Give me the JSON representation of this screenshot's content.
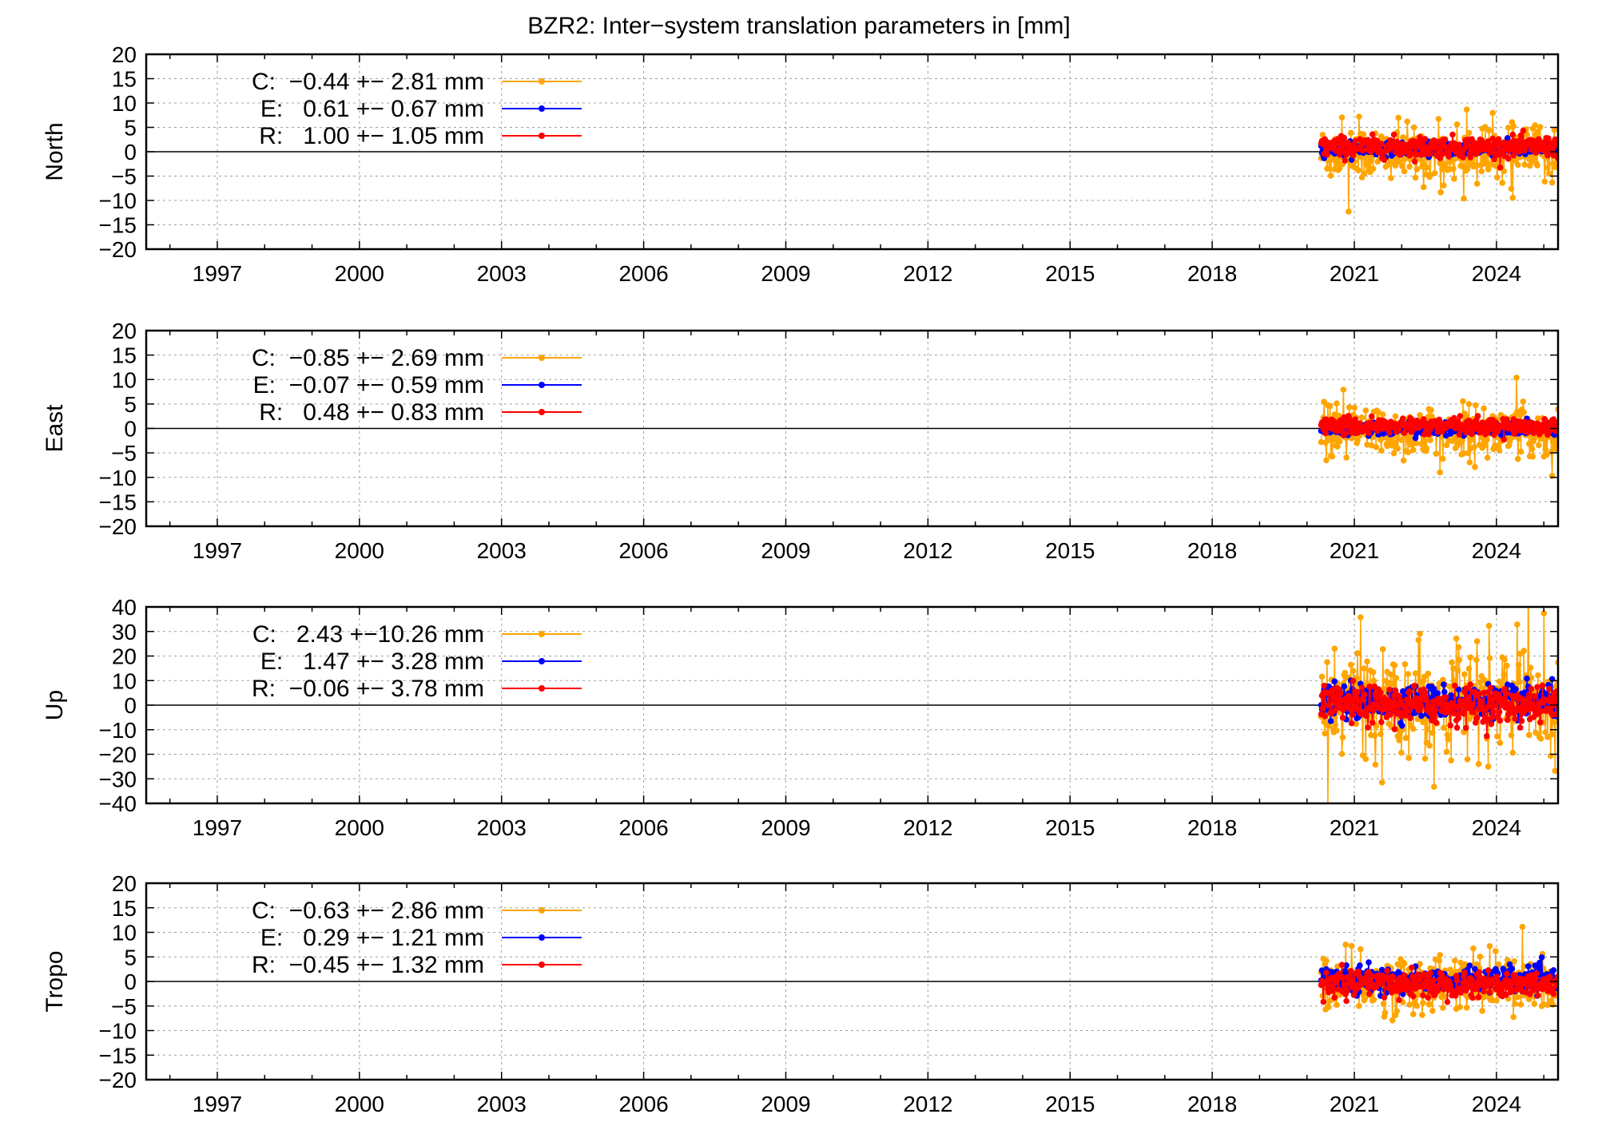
{
  "title": "BZR2: Inter−system translation parameters in [mm]",
  "colors": {
    "C": "#ffa500",
    "E": "#0000ff",
    "R": "#ff0000",
    "axis": "#000000",
    "grid": "#a0a0a0"
  },
  "chart_data": [
    {
      "type": "scatter",
      "ylabel": "North",
      "xlim": [
        1995.5,
        2025.3
      ],
      "ylim": [
        -20,
        20
      ],
      "yticks": [
        "20",
        "15",
        "10",
        "5",
        "0",
        "−5",
        "−10",
        "−15",
        "−20"
      ],
      "ytick_values": [
        20,
        15,
        10,
        5,
        0,
        -5,
        -10,
        -15,
        -20
      ],
      "xticks": [
        "1997",
        "2000",
        "2003",
        "2006",
        "2009",
        "2012",
        "2015",
        "2018",
        "2021",
        "2024"
      ],
      "xtick_values": [
        1997,
        2000,
        2003,
        2006,
        2009,
        2012,
        2015,
        2018,
        2021,
        2024
      ],
      "grid": true,
      "legend_position": "top-left",
      "series": [
        {
          "name": "C",
          "label": "C:  −0.44 +− 2.81 mm",
          "mean": -0.44,
          "std": 2.81,
          "x_range": [
            2020.3,
            2025.3
          ]
        },
        {
          "name": "E",
          "label": "E:   0.61 +− 0.67 mm",
          "mean": 0.61,
          "std": 0.67,
          "x_range": [
            2020.3,
            2025.3
          ]
        },
        {
          "name": "R",
          "label": "R:   1.00 +− 1.05 mm",
          "mean": 1.0,
          "std": 1.05,
          "x_range": [
            2020.3,
            2025.3
          ]
        }
      ]
    },
    {
      "type": "scatter",
      "ylabel": "East",
      "xlim": [
        1995.5,
        2025.3
      ],
      "ylim": [
        -20,
        20
      ],
      "yticks": [
        "20",
        "15",
        "10",
        "5",
        "0",
        "−5",
        "−10",
        "−15",
        "−20"
      ],
      "ytick_values": [
        20,
        15,
        10,
        5,
        0,
        -5,
        -10,
        -15,
        -20
      ],
      "xticks": [
        "1997",
        "2000",
        "2003",
        "2006",
        "2009",
        "2012",
        "2015",
        "2018",
        "2021",
        "2024"
      ],
      "xtick_values": [
        1997,
        2000,
        2003,
        2006,
        2009,
        2012,
        2015,
        2018,
        2021,
        2024
      ],
      "grid": true,
      "legend_position": "top-left",
      "series": [
        {
          "name": "C",
          "label": "C:  −0.85 +− 2.69 mm",
          "mean": -0.85,
          "std": 2.69,
          "x_range": [
            2020.3,
            2025.3
          ]
        },
        {
          "name": "E",
          "label": "E:  −0.07 +− 0.59 mm",
          "mean": -0.07,
          "std": 0.59,
          "x_range": [
            2020.3,
            2025.3
          ]
        },
        {
          "name": "R",
          "label": "R:   0.48 +− 0.83 mm",
          "mean": 0.48,
          "std": 0.83,
          "x_range": [
            2020.3,
            2025.3
          ]
        }
      ]
    },
    {
      "type": "scatter",
      "ylabel": "Up",
      "xlim": [
        1995.5,
        2025.3
      ],
      "ylim": [
        -40,
        40
      ],
      "yticks": [
        "40",
        "30",
        "20",
        "10",
        "0",
        "−10",
        "−20",
        "−30",
        "−40"
      ],
      "ytick_values": [
        40,
        30,
        20,
        10,
        0,
        -10,
        -20,
        -30,
        -40
      ],
      "xticks": [
        "1997",
        "2000",
        "2003",
        "2006",
        "2009",
        "2012",
        "2015",
        "2018",
        "2021",
        "2024"
      ],
      "xtick_values": [
        1997,
        2000,
        2003,
        2006,
        2009,
        2012,
        2015,
        2018,
        2021,
        2024
      ],
      "grid": true,
      "legend_position": "top-left",
      "series": [
        {
          "name": "C",
          "label": "C:   2.43 +−10.26 mm",
          "mean": 2.43,
          "std": 10.26,
          "x_range": [
            2020.3,
            2025.3
          ]
        },
        {
          "name": "E",
          "label": "E:   1.47 +− 3.28 mm",
          "mean": 1.47,
          "std": 3.28,
          "x_range": [
            2020.3,
            2025.3
          ]
        },
        {
          "name": "R",
          "label": "R:  −0.06 +− 3.78 mm",
          "mean": -0.06,
          "std": 3.78,
          "x_range": [
            2020.3,
            2025.3
          ]
        }
      ]
    },
    {
      "type": "scatter",
      "ylabel": "Tropo",
      "xlim": [
        1995.5,
        2025.3
      ],
      "ylim": [
        -20,
        20
      ],
      "yticks": [
        "20",
        "15",
        "10",
        "5",
        "0",
        "−5",
        "−10",
        "−15",
        "−20"
      ],
      "ytick_values": [
        20,
        15,
        10,
        5,
        0,
        -5,
        -10,
        -15,
        -20
      ],
      "xticks": [
        "1997",
        "2000",
        "2003",
        "2006",
        "2009",
        "2012",
        "2015",
        "2018",
        "2021",
        "2024"
      ],
      "xtick_values": [
        1997,
        2000,
        2003,
        2006,
        2009,
        2012,
        2015,
        2018,
        2021,
        2024
      ],
      "grid": true,
      "legend_position": "top-left",
      "series": [
        {
          "name": "C",
          "label": "C:  −0.63 +− 2.86 mm",
          "mean": -0.63,
          "std": 2.86,
          "x_range": [
            2020.3,
            2025.3
          ]
        },
        {
          "name": "E",
          "label": "E:   0.29 +− 1.21 mm",
          "mean": 0.29,
          "std": 1.21,
          "x_range": [
            2020.3,
            2025.3
          ]
        },
        {
          "name": "R",
          "label": "R:  −0.45 +− 1.32 mm",
          "mean": -0.45,
          "std": 1.32,
          "x_range": [
            2020.3,
            2025.3
          ]
        }
      ]
    }
  ]
}
